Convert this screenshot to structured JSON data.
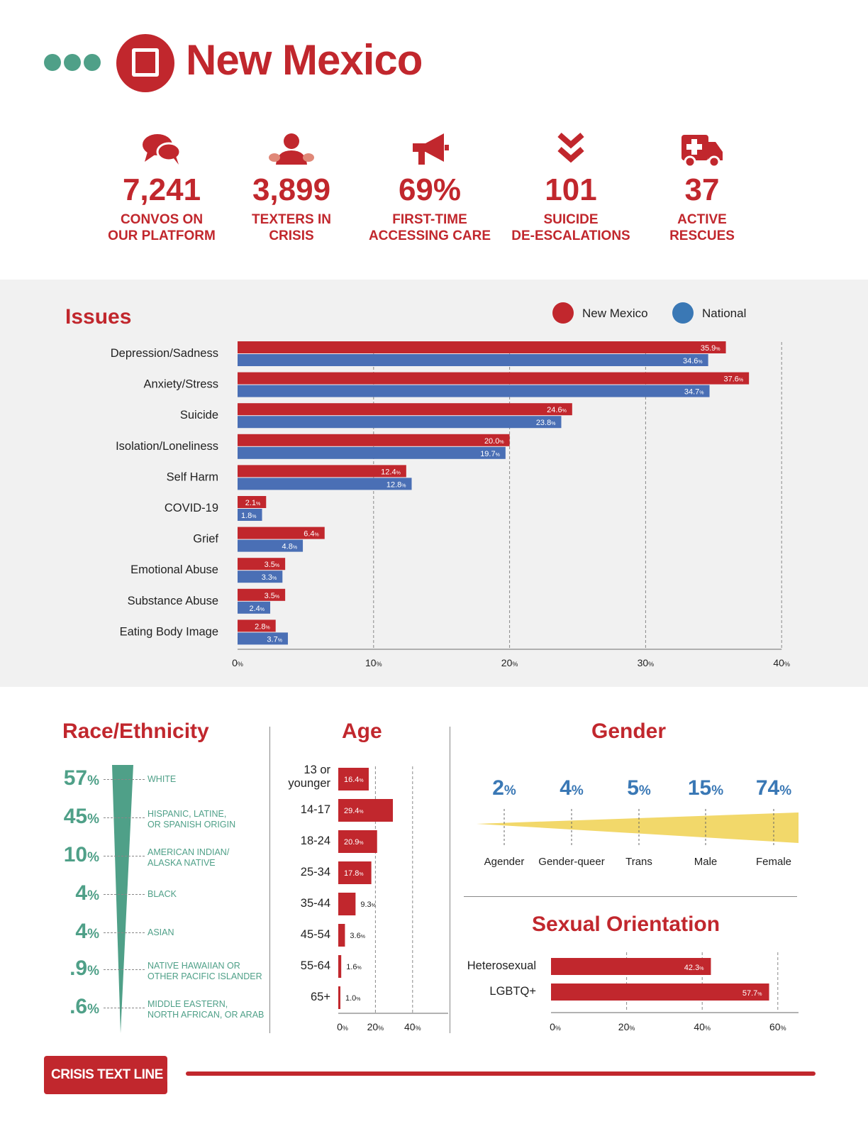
{
  "header": {
    "state": "New Mexico",
    "state_icon": "new-mexico-outline-icon"
  },
  "stats": [
    {
      "icon": "chat-bubbles-icon",
      "value": "7,241",
      "label": "CONVOS ON\nOUR PLATFORM"
    },
    {
      "icon": "person-icon",
      "value": "3,899",
      "label": "TEXTERS IN\nCRISIS"
    },
    {
      "icon": "megaphone-icon",
      "value": "69%",
      "label": "FIRST-TIME\nACCESSING CARE"
    },
    {
      "icon": "double-chevron-down-icon",
      "value": "101",
      "label": "SUICIDE\nDE-ESCALATIONS"
    },
    {
      "icon": "ambulance-icon",
      "value": "37",
      "label": "ACTIVE\nRESCUES"
    }
  ],
  "colors": {
    "red": "#c1272d",
    "blue": "#4a6fb5",
    "legend_blue": "#3a78b5",
    "green": "#4fa088",
    "yellow": "#f2d86a"
  },
  "issues": {
    "title": "Issues",
    "legend": [
      {
        "label": "New Mexico",
        "color": "#c1272d"
      },
      {
        "label": "National",
        "color": "#3a78b5"
      }
    ]
  },
  "chart_data": [
    {
      "type": "bar",
      "orientation": "horizontal",
      "title": "Issues",
      "categories": [
        "Depression/Sadness",
        "Anxiety/Stress",
        "Suicide",
        "Isolation/Loneliness",
        "Self Harm",
        "COVID-19",
        "Grief",
        "Emotional Abuse",
        "Substance Abuse",
        "Eating Body Image"
      ],
      "series": [
        {
          "name": "New Mexico",
          "values": [
            35.9,
            37.6,
            24.6,
            20.0,
            12.4,
            2.1,
            6.4,
            3.5,
            3.5,
            2.8
          ],
          "labels": [
            "35.9",
            "37.6",
            "24.6",
            "20.0",
            "12.4",
            "2.1",
            "6.4",
            "3.5",
            "3.5",
            "2.8"
          ]
        },
        {
          "name": "National",
          "values": [
            34.6,
            34.7,
            23.8,
            19.7,
            12.8,
            1.8,
            4.8,
            3.3,
            2.4,
            3.7
          ],
          "labels": [
            "34.6",
            "34.7",
            "23.8",
            "19.7",
            "12.8",
            "1.8",
            "4.8",
            "3.3",
            "2.4",
            "3.7"
          ]
        }
      ],
      "xlim": [
        0,
        40
      ],
      "ticks": [
        "0",
        "10",
        "20",
        "30",
        "40"
      ],
      "unit": "%",
      "grid": true,
      "legend_position": "top-right"
    },
    {
      "type": "bar",
      "orientation": "horizontal",
      "title": "Age",
      "categories": [
        "13 or\nyounger",
        "14-17",
        "18-24",
        "25-34",
        "35-44",
        "45-54",
        "55-64",
        "65+"
      ],
      "values": [
        16.4,
        29.4,
        20.9,
        17.8,
        9.3,
        3.6,
        1.6,
        1.0
      ],
      "labels": [
        "16.4",
        "29.4",
        "20.9",
        "17.8",
        "9.3",
        "3.6",
        "1.6",
        "1.0"
      ],
      "xlim": [
        0,
        40
      ],
      "ticks": [
        "0",
        "20",
        "40"
      ],
      "unit": "%",
      "grid": true
    },
    {
      "type": "bar",
      "orientation": "horizontal",
      "title": "Sexual Orientation",
      "categories": [
        "Heterosexual",
        "LGBTQ+"
      ],
      "values": [
        42.3,
        57.7
      ],
      "labels": [
        "42.3",
        "57.7"
      ],
      "xlim": [
        0,
        60
      ],
      "ticks": [
        "0",
        "20",
        "40",
        "60"
      ],
      "unit": "%",
      "grid": true
    }
  ],
  "race": {
    "title": "Race/Ethnicity",
    "items": [
      {
        "pct": "57",
        "unit": "%",
        "label": "WHITE"
      },
      {
        "pct": "45",
        "unit": "%",
        "label": "HISPANIC, LATINE,\nOR SPANISH ORIGIN"
      },
      {
        "pct": "10",
        "unit": "%",
        "label": "AMERICAN INDIAN/\nALASKA NATIVE"
      },
      {
        "pct": "4",
        "unit": "%",
        "label": "BLACK"
      },
      {
        "pct": "4",
        "unit": "%",
        "label": "ASIAN"
      },
      {
        "pct": ".9",
        "unit": "%",
        "label": "NATIVE HAWAIIAN OR\nOTHER PACIFIC ISLANDER"
      },
      {
        "pct": ".6",
        "unit": "%",
        "label": "MIDDLE EASTERN,\nNORTH AFRICAN, OR ARAB"
      }
    ]
  },
  "age": {
    "title": "Age"
  },
  "gender": {
    "title": "Gender",
    "items": [
      {
        "pct": "2",
        "unit": "%",
        "label": "Agender"
      },
      {
        "pct": "4",
        "unit": "%",
        "label": "Gender-queer"
      },
      {
        "pct": "5",
        "unit": "%",
        "label": "Trans"
      },
      {
        "pct": "15",
        "unit": "%",
        "label": "Male"
      },
      {
        "pct": "74",
        "unit": "%",
        "label": "Female"
      }
    ]
  },
  "orientation": {
    "title": "Sexual Orientation"
  },
  "footer": {
    "brand": "CRISIS TEXT LINE |"
  }
}
